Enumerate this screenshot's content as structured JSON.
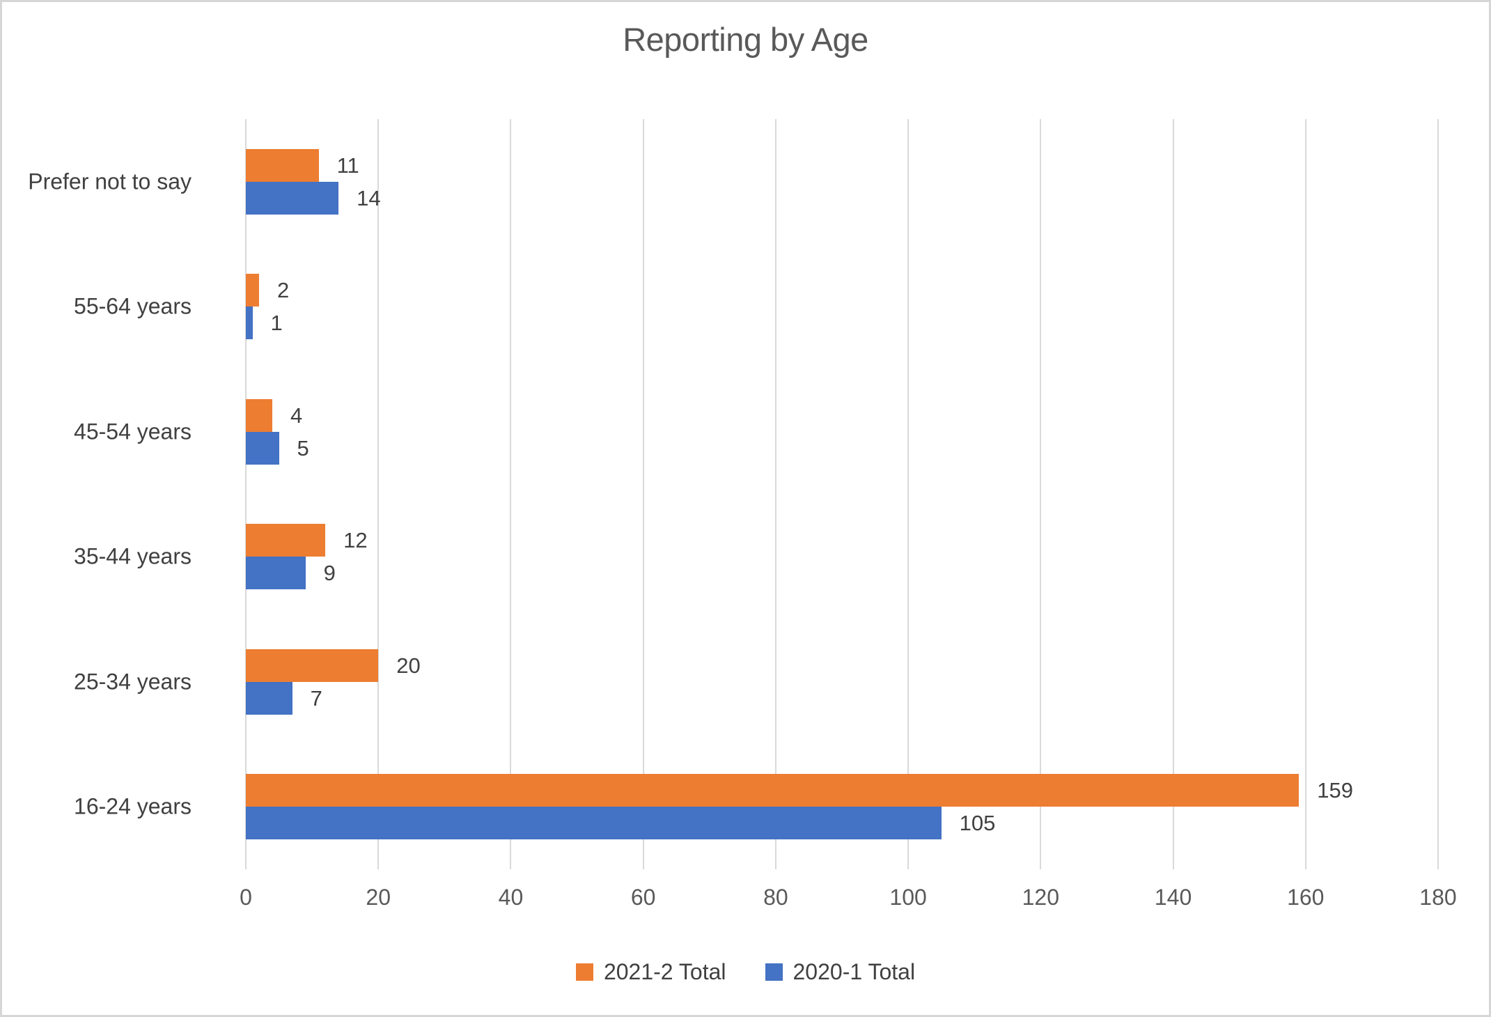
{
  "chart_data": {
    "type": "bar",
    "orientation": "horizontal",
    "title": "Reporting by Age",
    "categories": [
      "Prefer not to say",
      "55-64 years",
      "45-54 years",
      "35-44 years",
      "25-34 years",
      "16-24 years"
    ],
    "series": [
      {
        "name": "2021-2 Total",
        "color": "#ED7D31",
        "values": [
          11,
          2,
          4,
          12,
          20,
          159
        ]
      },
      {
        "name": "2020-1 Total",
        "color": "#4472C4",
        "values": [
          14,
          1,
          5,
          9,
          7,
          105
        ]
      }
    ],
    "xlim": [
      0,
      180
    ],
    "ticks": [
      0,
      20,
      40,
      60,
      80,
      100,
      120,
      140,
      160,
      180
    ],
    "grid": "vertical",
    "gridline_color": "#D9D9D9",
    "legend_position": "bottom"
  }
}
